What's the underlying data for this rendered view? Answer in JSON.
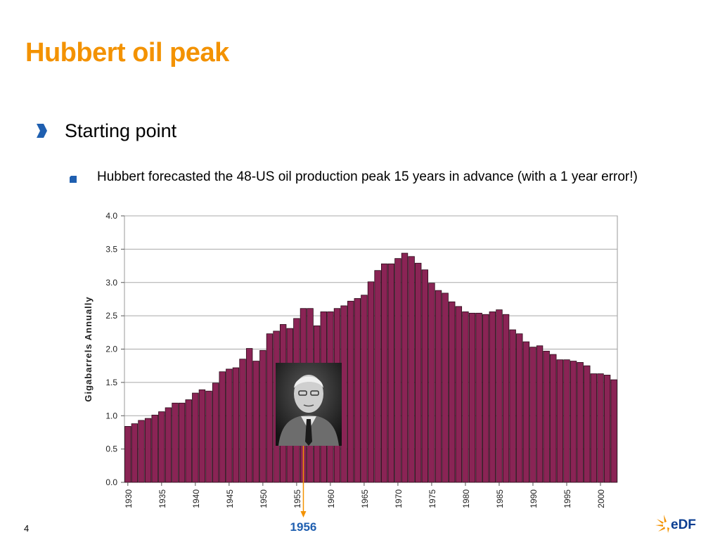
{
  "slide": {
    "title": "Hubbert oil peak",
    "bullet1": "Starting point",
    "bullet2": "Hubbert forecasted the 48-US oil production peak 15 years in advance (with a 1 year error!)",
    "page_number": "4",
    "logo_text": "eDF",
    "portrait_icon": "man-portrait-icon"
  },
  "colors": {
    "title": "#f39200",
    "bullet": "#1f5fb0",
    "bar": "#8a2455",
    "marker": "#f39200",
    "marker_label": "#1f5fb0",
    "logo": "#0a3d91"
  },
  "annotation": {
    "label": "1956",
    "x": 1956.5
  },
  "chart_data": {
    "type": "bar",
    "title": "",
    "xlabel": "",
    "ylabel": "Gigabarrels Annually",
    "ylim": [
      0,
      4
    ],
    "yticks": [
      "0.0",
      "0.5",
      "1.0",
      "1.5",
      "2.0",
      "2.5",
      "3.0",
      "3.5",
      "4.0"
    ],
    "xticks": [
      "1930",
      "1935",
      "1940",
      "1945",
      "1950",
      "1955",
      "1960",
      "1965",
      "1970",
      "1975",
      "1980",
      "1985",
      "1990",
      "1995",
      "2000"
    ],
    "grid": true,
    "x": [
      1930,
      1931,
      1932,
      1933,
      1934,
      1935,
      1936,
      1937,
      1938,
      1939,
      1940,
      1941,
      1942,
      1943,
      1944,
      1945,
      1946,
      1947,
      1948,
      1949,
      1950,
      1951,
      1952,
      1953,
      1954,
      1955,
      1956,
      1957,
      1958,
      1959,
      1960,
      1961,
      1962,
      1963,
      1964,
      1965,
      1966,
      1967,
      1968,
      1969,
      1970,
      1971,
      1972,
      1973,
      1974,
      1975,
      1976,
      1977,
      1978,
      1979,
      1980,
      1981,
      1982,
      1983,
      1984,
      1985,
      1986,
      1987,
      1988,
      1989,
      1990,
      1991,
      1992,
      1993,
      1994,
      1995,
      1996,
      1997,
      1998,
      1999,
      2000,
      2001,
      2002
    ],
    "values": [
      0.84,
      0.88,
      0.93,
      0.96,
      1.01,
      1.06,
      1.12,
      1.19,
      1.19,
      1.24,
      1.34,
      1.39,
      1.37,
      1.49,
      1.66,
      1.7,
      1.72,
      1.85,
      2.01,
      1.82,
      1.98,
      2.23,
      2.27,
      2.37,
      2.31,
      2.46,
      2.61,
      2.61,
      2.35,
      2.56,
      2.56,
      2.61,
      2.65,
      2.72,
      2.76,
      2.81,
      3.01,
      3.18,
      3.28,
      3.28,
      3.36,
      3.44,
      3.39,
      3.29,
      3.19,
      2.99,
      2.88,
      2.84,
      2.71,
      2.64,
      2.56,
      2.54,
      2.54,
      2.52,
      2.56,
      2.59,
      2.52,
      2.29,
      2.23,
      2.11,
      2.03,
      2.05,
      1.97,
      1.92,
      1.84,
      1.84,
      1.82,
      1.8,
      1.75,
      1.63,
      1.63,
      1.61,
      1.54
    ]
  }
}
